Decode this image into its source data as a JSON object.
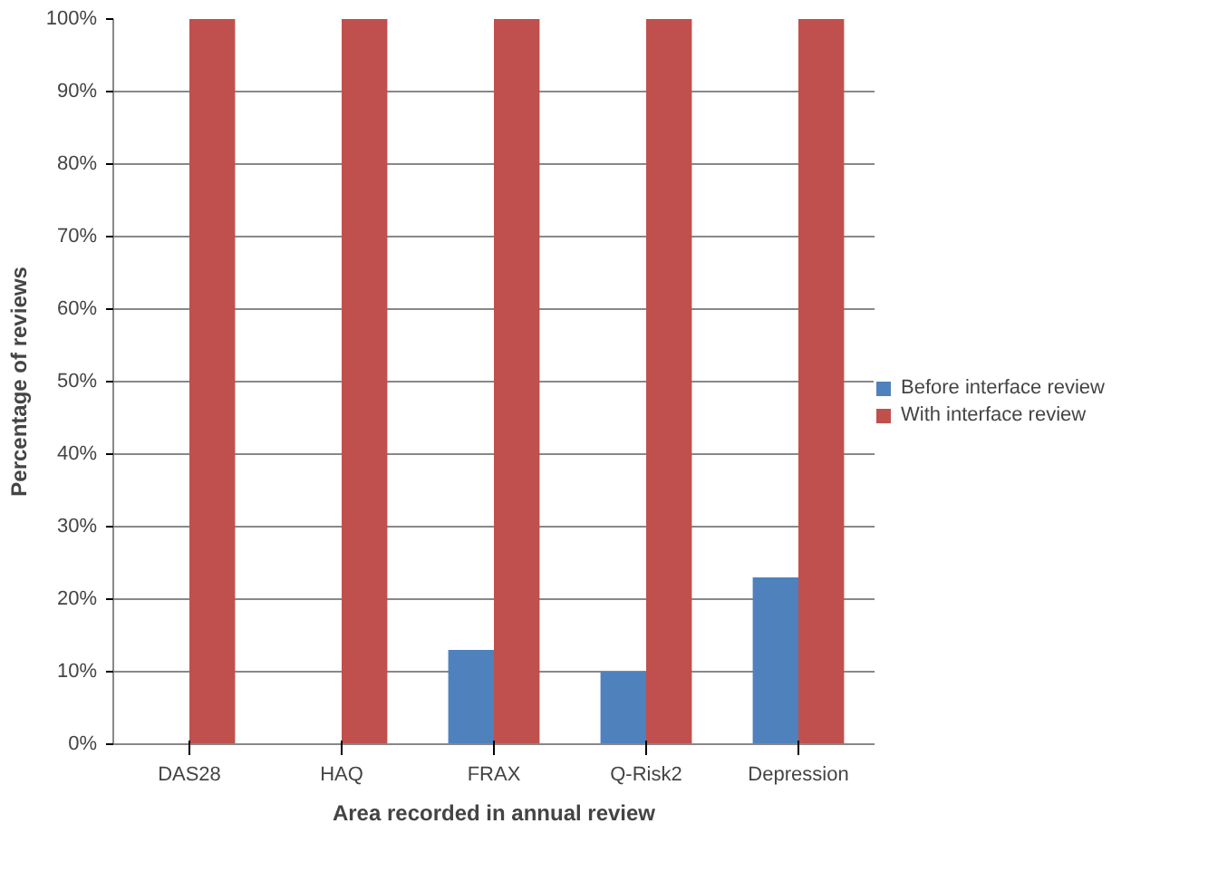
{
  "chart_data": {
    "type": "bar",
    "xlabel": "Area recorded in annual review",
    "ylabel": "Percentage of reviews",
    "categories": [
      "DAS28",
      "HAQ",
      "FRAX",
      "Q-Risk2",
      "Depression"
    ],
    "series": [
      {
        "name": "Before interface review",
        "color": "#4f81bd",
        "values": [
          0,
          0,
          13,
          10,
          23
        ]
      },
      {
        "name": "With interface review",
        "color": "#c0504d",
        "values": [
          100,
          100,
          100,
          100,
          100
        ]
      }
    ],
    "ylim": [
      0,
      100
    ],
    "yticks": [
      {
        "value": 0,
        "label": "0%"
      },
      {
        "value": 10,
        "label": "10%"
      },
      {
        "value": 20,
        "label": "20%"
      },
      {
        "value": 30,
        "label": "30%"
      },
      {
        "value": 40,
        "label": "40%"
      },
      {
        "value": 50,
        "label": "50%"
      },
      {
        "value": 60,
        "label": "60%"
      },
      {
        "value": 70,
        "label": "70%"
      },
      {
        "value": 80,
        "label": "80%"
      },
      {
        "value": 90,
        "label": "90%"
      },
      {
        "value": 100,
        "label": "100%"
      }
    ],
    "grid": "y",
    "legend": "right"
  }
}
